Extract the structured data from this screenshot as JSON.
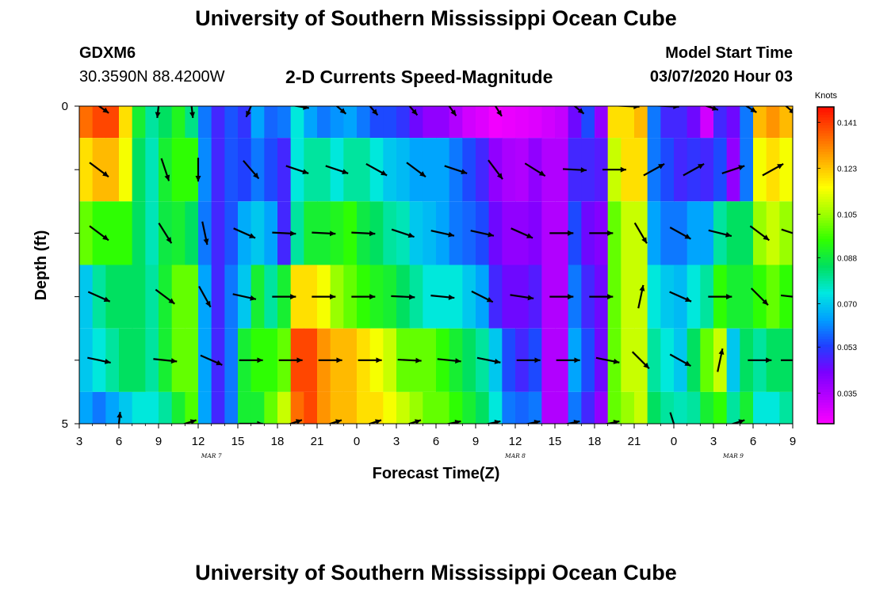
{
  "header": {
    "title": "University of Southern Mississippi Ocean Cube",
    "station_id": "GDXM6",
    "station_coords": "30.3590N 88.4200W",
    "chart_title": "2-D Currents Speed-Magnitude",
    "model_label": "Model Start Time",
    "model_time": "03/07/2020 Hour 03"
  },
  "footer": {
    "title": "University of Southern Mississippi Ocean Cube"
  },
  "colors": {
    "colormap": [
      "#ff00ff",
      "#bb00ff",
      "#7a00ff",
      "#2040ff",
      "#00a0ff",
      "#00e8e0",
      "#00e060",
      "#30ff00",
      "#a0ff00",
      "#ffff00",
      "#ffb000",
      "#ff6000",
      "#ff1000"
    ]
  },
  "chart_data": {
    "type": "heatmap",
    "xlabel": "Forecast Time(Z)",
    "ylabel": "Depth (ft)",
    "x_tick_labels": [
      "3",
      "6",
      "9",
      "12",
      "15",
      "18",
      "21",
      "0",
      "3",
      "6",
      "9",
      "12",
      "15",
      "18",
      "21",
      "0",
      "3",
      "6",
      "9"
    ],
    "x_range_hours": [
      0,
      54
    ],
    "date_labels": [
      {
        "text": "MAR 7",
        "at_hour": 10
      },
      {
        "text": "MAR 8",
        "at_hour": 33
      },
      {
        "text": "MAR 9",
        "at_hour": 49.5
      }
    ],
    "y_tick_labels": [
      "0",
      "5"
    ],
    "y_range": [
      0,
      5
    ],
    "depth_levels": [
      0,
      1,
      2,
      3,
      4,
      5
    ],
    "colorbar": {
      "label": "Knots",
      "min": 0.023,
      "max": 0.147,
      "ticks": [
        "0.141",
        "0.123",
        "0.105",
        "0.088",
        "0.070",
        "0.053",
        "0.035"
      ]
    },
    "hours_per_column": 1,
    "speed_columns": [
      [
        0.135,
        0.12,
        0.1,
        0.07,
        0.07,
        0.065
      ],
      [
        0.14,
        0.125,
        0.095,
        0.08,
        0.075,
        0.06
      ],
      [
        0.14,
        0.125,
        0.095,
        0.085,
        0.08,
        0.065
      ],
      [
        0.12,
        0.115,
        0.095,
        0.085,
        0.085,
        0.07
      ],
      [
        0.09,
        0.085,
        0.085,
        0.085,
        0.085,
        0.075
      ],
      [
        0.08,
        0.078,
        0.078,
        0.08,
        0.08,
        0.075
      ],
      [
        0.085,
        0.09,
        0.088,
        0.09,
        0.09,
        0.08
      ],
      [
        0.092,
        0.095,
        0.09,
        0.1,
        0.1,
        0.09
      ],
      [
        0.082,
        0.095,
        0.085,
        0.1,
        0.1,
        0.098
      ],
      [
        0.06,
        0.062,
        0.06,
        0.065,
        0.065,
        0.065
      ],
      [
        0.05,
        0.05,
        0.05,
        0.05,
        0.05,
        0.05
      ],
      [
        0.056,
        0.056,
        0.056,
        0.06,
        0.06,
        0.06
      ],
      [
        0.052,
        0.054,
        0.066,
        0.07,
        0.09,
        0.09
      ],
      [
        0.065,
        0.06,
        0.07,
        0.09,
        0.095,
        0.09
      ],
      [
        0.058,
        0.055,
        0.065,
        0.08,
        0.095,
        0.1
      ],
      [
        0.06,
        0.05,
        0.05,
        0.09,
        0.1,
        0.11
      ],
      [
        0.075,
        0.075,
        0.08,
        0.12,
        0.14,
        0.135
      ],
      [
        0.065,
        0.08,
        0.09,
        0.12,
        0.14,
        0.14
      ],
      [
        0.06,
        0.08,
        0.09,
        0.115,
        0.13,
        0.13
      ],
      [
        0.063,
        0.075,
        0.092,
        0.105,
        0.125,
        0.125
      ],
      [
        0.065,
        0.08,
        0.095,
        0.1,
        0.125,
        0.125
      ],
      [
        0.06,
        0.08,
        0.088,
        0.095,
        0.12,
        0.12
      ],
      [
        0.055,
        0.075,
        0.085,
        0.092,
        0.115,
        0.12
      ],
      [
        0.055,
        0.07,
        0.08,
        0.09,
        0.11,
        0.115
      ],
      [
        0.052,
        0.068,
        0.078,
        0.085,
        0.1,
        0.11
      ],
      [
        0.045,
        0.065,
        0.07,
        0.08,
        0.1,
        0.105
      ],
      [
        0.04,
        0.065,
        0.068,
        0.075,
        0.1,
        0.1
      ],
      [
        0.04,
        0.065,
        0.065,
        0.075,
        0.095,
        0.1
      ],
      [
        0.035,
        0.06,
        0.06,
        0.075,
        0.09,
        0.095
      ],
      [
        0.03,
        0.055,
        0.058,
        0.07,
        0.085,
        0.09
      ],
      [
        0.028,
        0.05,
        0.055,
        0.065,
        0.08,
        0.085
      ],
      [
        0.025,
        0.04,
        0.045,
        0.05,
        0.07,
        0.075
      ],
      [
        0.026,
        0.036,
        0.04,
        0.045,
        0.055,
        0.06
      ],
      [
        0.027,
        0.035,
        0.04,
        0.045,
        0.05,
        0.058
      ],
      [
        0.028,
        0.04,
        0.042,
        0.048,
        0.055,
        0.06
      ],
      [
        0.03,
        0.035,
        0.035,
        0.035,
        0.035,
        0.035
      ],
      [
        0.032,
        0.035,
        0.035,
        0.035,
        0.035,
        0.035
      ],
      [
        0.045,
        0.05,
        0.055,
        0.06,
        0.065,
        0.06
      ],
      [
        0.055,
        0.05,
        0.045,
        0.05,
        0.055,
        0.05
      ],
      [
        0.04,
        0.048,
        0.042,
        0.045,
        0.045,
        0.04
      ],
      [
        0.12,
        0.11,
        0.1,
        0.1,
        0.1,
        0.1
      ],
      [
        0.12,
        0.12,
        0.11,
        0.11,
        0.11,
        0.105
      ],
      [
        0.125,
        0.12,
        0.11,
        0.11,
        0.11,
        0.11
      ],
      [
        0.06,
        0.06,
        0.065,
        0.075,
        0.08,
        0.085
      ],
      [
        0.05,
        0.055,
        0.06,
        0.07,
        0.075,
        0.08
      ],
      [
        0.05,
        0.05,
        0.06,
        0.068,
        0.07,
        0.078
      ],
      [
        0.045,
        0.052,
        0.065,
        0.075,
        0.085,
        0.08
      ],
      [
        0.03,
        0.05,
        0.065,
        0.08,
        0.1,
        0.09
      ],
      [
        0.05,
        0.055,
        0.08,
        0.095,
        0.11,
        0.095
      ],
      [
        0.045,
        0.04,
        0.085,
        0.09,
        0.07,
        0.08
      ],
      [
        0.06,
        0.06,
        0.085,
        0.09,
        0.085,
        0.09
      ],
      [
        0.125,
        0.115,
        0.105,
        0.095,
        0.08,
        0.075
      ],
      [
        0.13,
        0.12,
        0.11,
        0.1,
        0.085,
        0.075
      ],
      [
        0.125,
        0.115,
        0.105,
        0.095,
        0.085,
        0.08
      ],
      [
        0.13,
        0.115,
        0.1,
        0.085,
        0.075,
        0.07
      ]
    ],
    "arrow_rows": [
      {
        "depth": 0.0,
        "hours": [
          1.5,
          6,
          8.5,
          13,
          16.5,
          19.5,
          22,
          25,
          28,
          31.5,
          37.5,
          41.5,
          44.5,
          47.5,
          50.5,
          53.5
        ],
        "u": [
          0.7,
          -0.1,
          0.1,
          -0.4,
          0.6,
          0.7,
          0.6,
          0.6,
          0.5,
          0.5,
          0.6,
          1,
          1,
          0.9,
          0.8,
          0.7
        ],
        "v": [
          0.5,
          0.9,
          0.9,
          0.9,
          0.1,
          0.6,
          0.7,
          0.7,
          0.7,
          0.8,
          0.5,
          0.05,
          0.05,
          0.3,
          0.5,
          0.6
        ]
      },
      {
        "depth": 1.0,
        "hours": [
          1.5,
          6.5,
          9,
          13,
          16.5,
          19.5,
          22.5,
          25.5,
          28.5,
          31.5,
          34.5,
          37.5,
          40.5,
          43.5,
          46.5,
          49.5,
          52.5
        ],
        "u": [
          0.8,
          0.3,
          0,
          0.6,
          0.9,
          0.9,
          0.9,
          0.8,
          0.9,
          0.6,
          0.8,
          1,
          1,
          0.9,
          0.9,
          0.9,
          0.9
        ],
        "v": [
          0.6,
          0.9,
          1,
          0.7,
          0.3,
          0.3,
          0.5,
          0.6,
          0.3,
          0.8,
          0.5,
          0.05,
          0,
          -0.5,
          -0.5,
          -0.3,
          -0.5
        ]
      },
      {
        "depth": 2.0,
        "hours": [
          1.5,
          6.5,
          9.5,
          12.5,
          15.5,
          18.5,
          21.5,
          24.5,
          27.5,
          30.5,
          33.5,
          36.5,
          39.5,
          42.5,
          45.5,
          48.5,
          51.5,
          54.0
        ],
        "u": [
          0.8,
          0.5,
          0.2,
          0.9,
          1,
          1,
          1,
          0.9,
          0.9,
          0.9,
          0.9,
          1,
          1,
          0.5,
          0.9,
          0.8,
          0.8,
          0.9
        ],
        "v": [
          0.6,
          0.8,
          0.95,
          0.4,
          0.05,
          0.05,
          0.05,
          0.3,
          0.2,
          0.2,
          0.4,
          0,
          0,
          0.85,
          0.5,
          0.2,
          0.6,
          0.3
        ]
      },
      {
        "depth": 3.0,
        "hours": [
          1.5,
          6.5,
          9.5,
          12.5,
          15.5,
          18.5,
          21.5,
          24.5,
          27.5,
          30.5,
          33.5,
          36.5,
          39.5,
          42.5,
          45.5,
          48.5,
          51.5,
          54.0
        ],
        "u": [
          0.9,
          0.8,
          0.5,
          0.9,
          1,
          1,
          1,
          1,
          1,
          1,
          1,
          1,
          1,
          0.2,
          0.9,
          0.9,
          0.6,
          0.9
        ],
        "v": [
          0.4,
          0.6,
          0.9,
          0.2,
          0,
          0,
          0,
          0.05,
          0.1,
          0.5,
          0.15,
          0,
          0,
          -0.95,
          0.4,
          0,
          0.6,
          0.1
        ]
      },
      {
        "depth": 4.0,
        "hours": [
          1.5,
          6.5,
          10,
          13,
          16,
          19,
          22,
          25,
          28,
          31,
          34,
          37,
          40,
          42.5,
          45.5,
          48.5,
          51.5,
          54.0
        ],
        "u": [
          0.95,
          0.95,
          0.9,
          1,
          1,
          1,
          1,
          1,
          1,
          1,
          1,
          1,
          1,
          0.7,
          0.9,
          0.2,
          0.95,
          0.95
        ],
        "v": [
          0.2,
          0.1,
          0.4,
          0,
          0,
          0,
          0,
          0.05,
          0.1,
          0.2,
          0,
          0,
          0.2,
          0.7,
          0.5,
          -0.95,
          0,
          0
        ]
      },
      {
        "depth": 5.0,
        "hours": [
          3,
          8,
          13,
          16,
          19,
          22,
          25,
          28,
          31,
          34,
          37,
          40,
          45,
          49.5
        ],
        "u": [
          0.1,
          0.95,
          1,
          0.9,
          0.95,
          0.95,
          0.95,
          0.95,
          0.95,
          0.95,
          0.95,
          0.95,
          0.3,
          0.95
        ],
        "v": [
          -0.95,
          -0.3,
          0,
          -0.3,
          -0.3,
          -0.3,
          -0.3,
          -0.2,
          -0.2,
          -0.2,
          -0.2,
          -0.2,
          0.95,
          -0.3
        ]
      }
    ]
  }
}
